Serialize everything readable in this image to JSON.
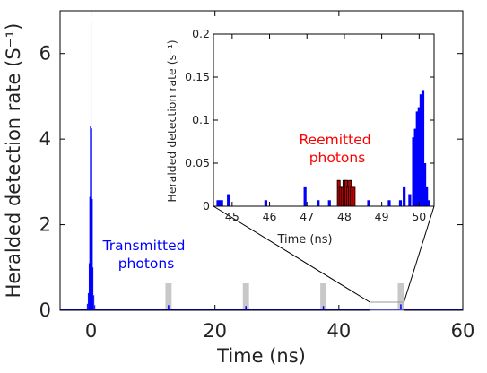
{
  "chart_data": [
    {
      "type": "bar",
      "xlabel": "Time (ns)",
      "ylabel": "Heralded detection rate (S⁻¹)",
      "xlim": [
        -5,
        60
      ],
      "ylim": [
        0,
        7
      ],
      "xticks": [
        0,
        20,
        40,
        60
      ],
      "yticks": [
        0,
        2,
        4,
        6
      ],
      "grid": false,
      "series_color": "#0000ff",
      "annotation": {
        "lines": [
          "Transmitted",
          "photons"
        ],
        "color": "#0000ff"
      },
      "peak": {
        "x": [
          -0.6,
          -0.45,
          -0.3,
          -0.2,
          -0.1,
          0,
          0.1,
          0.2,
          0.3,
          0.45,
          0.6
        ],
        "y": [
          0.15,
          0.4,
          1.1,
          2.65,
          4.3,
          6.75,
          4.25,
          2.6,
          1.0,
          0.35,
          0.12
        ]
      },
      "small_peaks": {
        "x": [
          12.5,
          25,
          37.5,
          50
        ],
        "y": [
          0.12,
          0.1,
          0.1,
          0.14
        ]
      },
      "shaded_regions": [
        [
          12,
          13
        ],
        [
          24.5,
          25.5
        ],
        [
          37,
          38
        ],
        [
          49.5,
          50.5
        ]
      ],
      "shade_color": "#c8c8c8",
      "zoom_box": {
        "x": [
          45,
          50.5
        ],
        "y": [
          0,
          0.2
        ]
      }
    },
    {
      "type": "bar",
      "xlabel": "Time (ns)",
      "ylabel": "Heralded detection rate (s⁻¹)",
      "xlim": [
        44.5,
        50.4
      ],
      "ylim": [
        0,
        0.2
      ],
      "xticks": [
        45,
        46,
        47,
        48,
        49,
        50
      ],
      "yticks": [
        0,
        0.05,
        0.1,
        0.15,
        0.2
      ],
      "ytick_labels": [
        "0",
        "0.05",
        "0.1",
        "0.15",
        "0.2"
      ],
      "grid": false,
      "series": [
        {
          "color": "#0000ff",
          "x": [
            44.62,
            44.67,
            44.72,
            44.9,
            45.9,
            46.95,
            47.3,
            47.6,
            48.65,
            49.2,
            49.5,
            49.6,
            49.75,
            49.85,
            49.9,
            49.95,
            50.0,
            50.05,
            50.1,
            50.15,
            50.2,
            50.25
          ],
          "y": [
            0.007,
            0.007,
            0.007,
            0.014,
            0.007,
            0.022,
            0.007,
            0.007,
            0.007,
            0.007,
            0.007,
            0.022,
            0.014,
            0.08,
            0.09,
            0.11,
            0.115,
            0.13,
            0.135,
            0.05,
            0.022,
            0.007
          ]
        },
        {
          "color": "#c00000",
          "x": [
            47.85,
            47.9,
            47.95,
            48.0,
            48.05,
            48.1,
            48.15,
            48.2,
            48.25
          ],
          "y": [
            0.03,
            0.022,
            0.022,
            0.03,
            0.03,
            0.022,
            0.03,
            0.022,
            0.022
          ]
        }
      ],
      "annotation": {
        "lines": [
          "Reemitted",
          "photons"
        ],
        "color": "#ff0000"
      }
    }
  ]
}
